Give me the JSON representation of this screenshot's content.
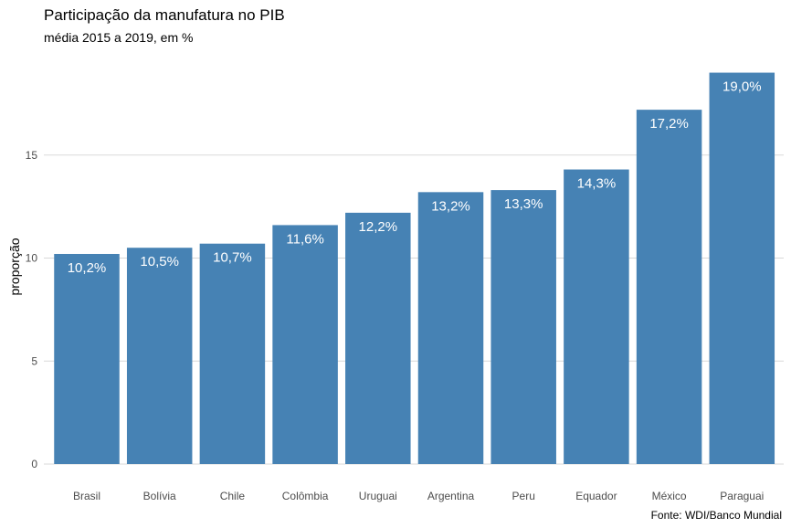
{
  "chart_data": {
    "type": "bar",
    "title": "Participação da manufatura no PIB",
    "subtitle": "média 2015 a 2019, em %",
    "xlabel": "",
    "ylabel": "proporção",
    "caption": "Fonte: WDI/Banco Mundial",
    "categories": [
      "Brasil",
      "Bolívia",
      "Chile",
      "Colômbia",
      "Uruguai",
      "Argentina",
      "Peru",
      "Equador",
      "México",
      "Paraguai"
    ],
    "values": [
      10.2,
      10.5,
      10.7,
      11.6,
      12.2,
      13.2,
      13.3,
      14.3,
      17.2,
      19.0
    ],
    "data_labels": [
      "10,2%",
      "10,5%",
      "10,7%",
      "11,6%",
      "12,2%",
      "13,2%",
      "13,3%",
      "14,3%",
      "17,2%",
      "19,0%"
    ],
    "y_ticks": [
      0,
      5,
      10,
      15
    ],
    "y_tick_labels": [
      "0",
      "5",
      "10",
      "15"
    ],
    "ylim": [
      0,
      19.5
    ],
    "grid": "horizontal",
    "legend": "none",
    "bar_color": "#4682B4"
  }
}
